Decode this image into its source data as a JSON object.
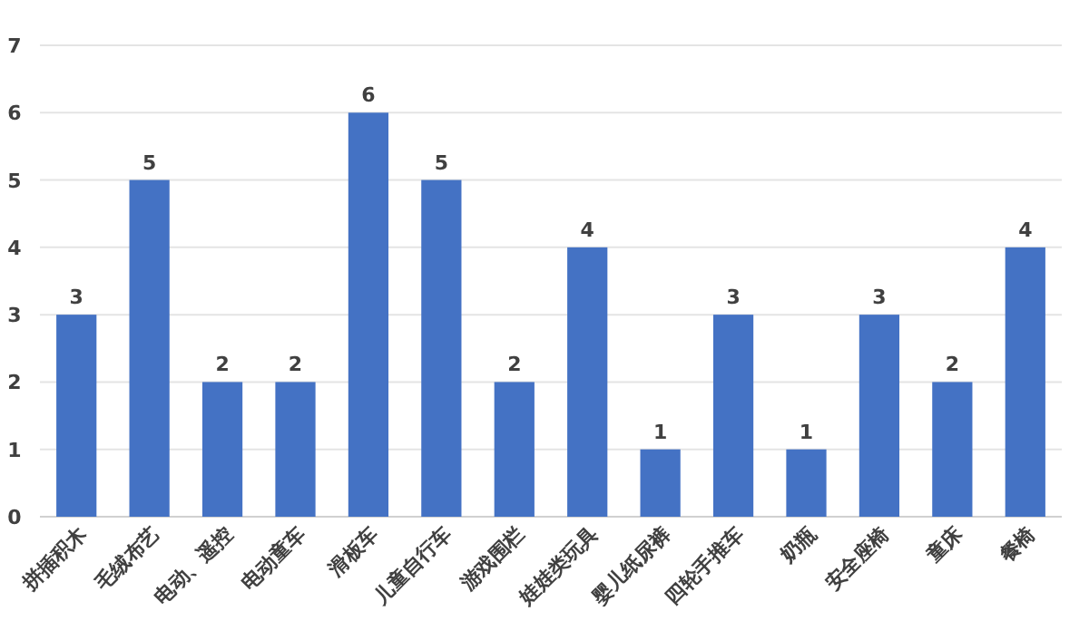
{
  "chart_data": {
    "type": "bar",
    "categories": [
      "拼插积木",
      "毛绒布艺",
      "电动、遥控",
      "电动童车",
      "滑板车",
      "儿童自行车",
      "游戏围栏",
      "娃娃类玩具",
      "婴儿纸尿裤",
      "四轮手推车",
      "奶瓶",
      "安全座椅",
      "童床",
      "餐椅"
    ],
    "values": [
      3,
      5,
      2,
      2,
      6,
      5,
      2,
      4,
      1,
      3,
      1,
      3,
      2,
      4
    ],
    "color": "#4472c4",
    "ylim": [
      0,
      7
    ],
    "yticks": [
      0,
      1,
      2,
      3,
      4,
      5,
      6,
      7
    ],
    "grid": "y",
    "data_labels": true
  }
}
